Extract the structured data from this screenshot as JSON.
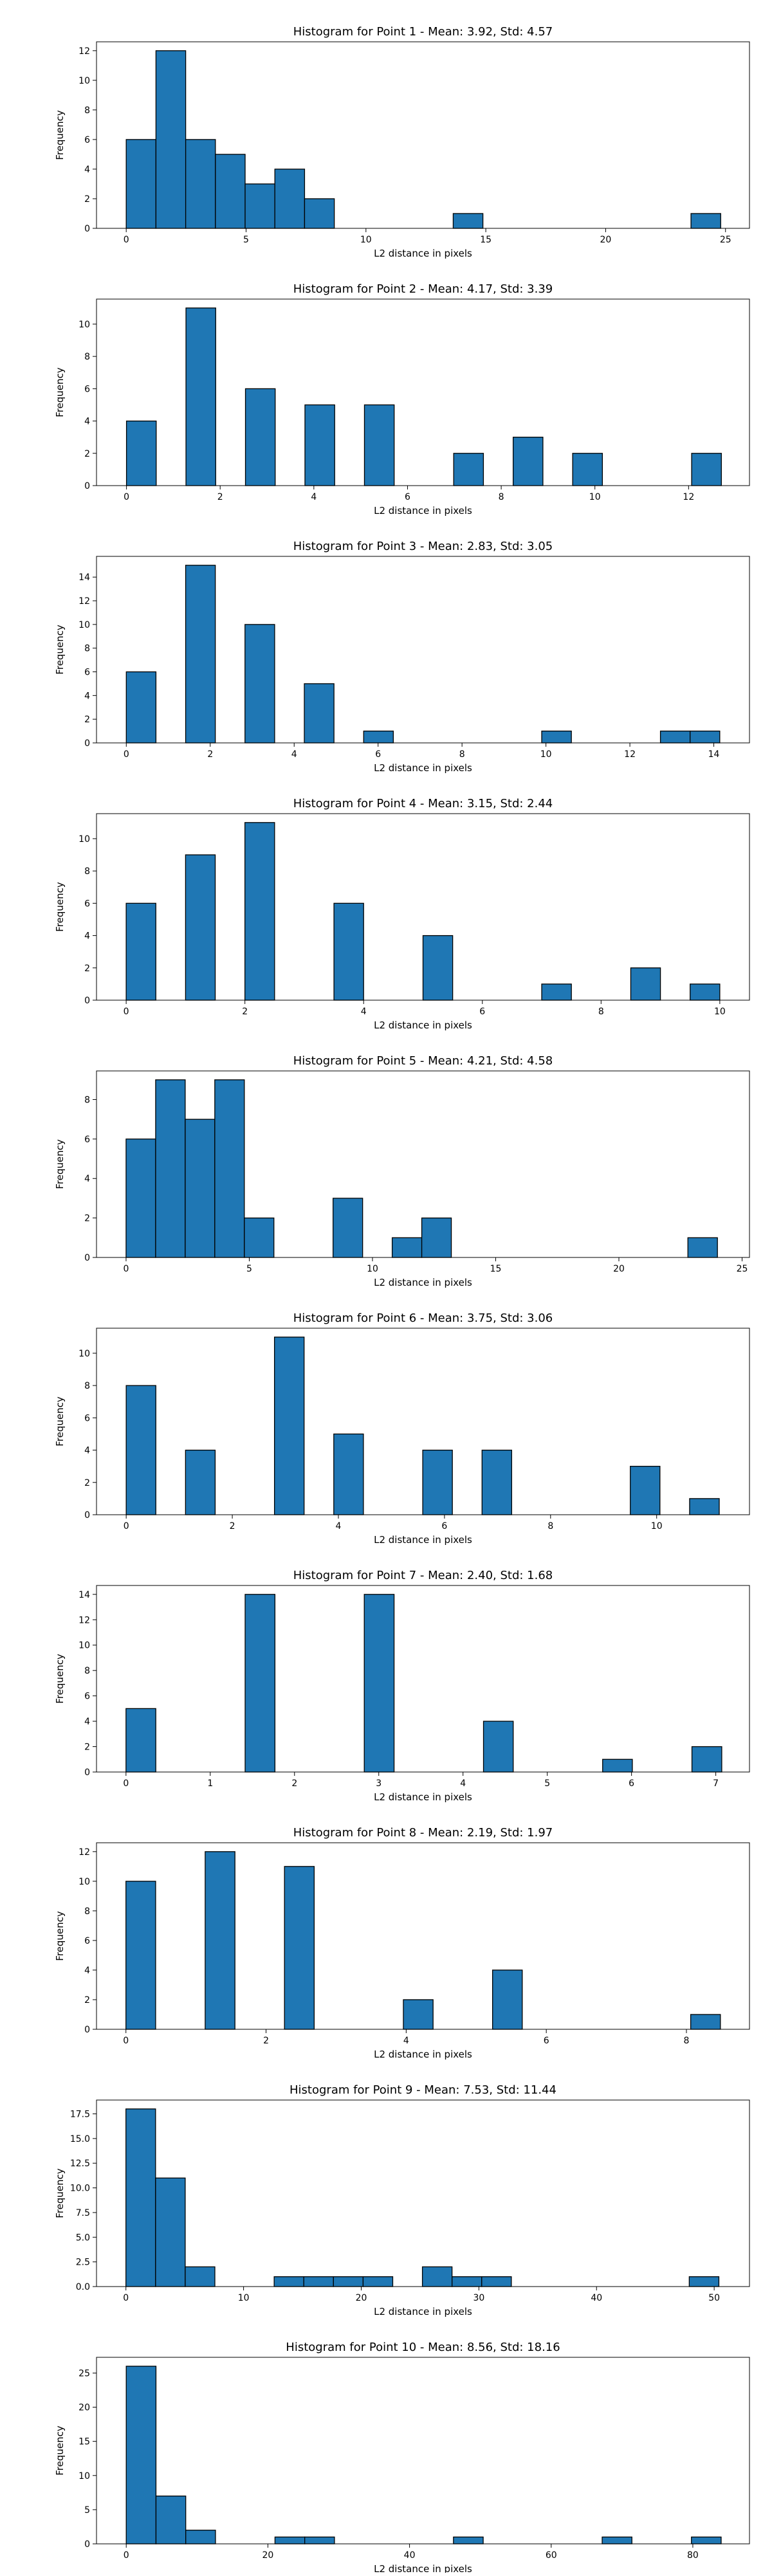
{
  "chart_data": [
    {
      "type": "bar",
      "title": "Histogram for Point 1 - Mean: 3.92, Std: 4.57",
      "xlabel": "L2 distance in pixels",
      "ylabel": "Frequency",
      "xlim": [
        -1.24,
        26.0
      ],
      "ylim": [
        0,
        12.6
      ],
      "xticks": [
        0,
        5,
        10,
        15,
        20,
        25
      ],
      "yticks": [
        0,
        2,
        4,
        6,
        8,
        10,
        12
      ],
      "ytick_labels": [
        "0",
        "2",
        "4",
        "6",
        "8",
        "10",
        "12"
      ],
      "grid": false,
      "bins": [
        {
          "x0": 0.0,
          "x1": 1.24,
          "count": 6
        },
        {
          "x0": 1.24,
          "x1": 2.48,
          "count": 12
        },
        {
          "x0": 2.48,
          "x1": 3.72,
          "count": 6
        },
        {
          "x0": 3.72,
          "x1": 4.96,
          "count": 5
        },
        {
          "x0": 4.96,
          "x1": 6.2,
          "count": 3
        },
        {
          "x0": 6.2,
          "x1": 7.44,
          "count": 4
        },
        {
          "x0": 7.44,
          "x1": 8.68,
          "count": 2
        },
        {
          "x0": 13.64,
          "x1": 14.88,
          "count": 1
        },
        {
          "x0": 23.56,
          "x1": 24.8,
          "count": 1
        }
      ]
    },
    {
      "type": "bar",
      "title": "Histogram for Point 2 - Mean: 4.17, Std: 3.39",
      "xlabel": "L2 distance in pixels",
      "ylabel": "Frequency",
      "xlim": [
        -0.64,
        13.3
      ],
      "ylim": [
        0,
        11.55
      ],
      "xticks": [
        0,
        2,
        4,
        6,
        8,
        10,
        12
      ],
      "yticks": [
        0,
        2,
        4,
        6,
        8,
        10
      ],
      "ytick_labels": [
        "0",
        "2",
        "4",
        "6",
        "8",
        "10"
      ],
      "grid": false,
      "bins": [
        {
          "x0": 0.0,
          "x1": 0.635,
          "count": 4
        },
        {
          "x0": 1.27,
          "x1": 1.905,
          "count": 11
        },
        {
          "x0": 2.54,
          "x1": 3.175,
          "count": 6
        },
        {
          "x0": 3.81,
          "x1": 4.445,
          "count": 5
        },
        {
          "x0": 5.08,
          "x1": 5.715,
          "count": 5
        },
        {
          "x0": 6.985,
          "x1": 7.62,
          "count": 2
        },
        {
          "x0": 8.255,
          "x1": 8.89,
          "count": 3
        },
        {
          "x0": 9.525,
          "x1": 10.16,
          "count": 2
        },
        {
          "x0": 12.065,
          "x1": 12.7,
          "count": 2
        }
      ]
    },
    {
      "type": "bar",
      "title": "Histogram for Point 3 - Mean: 2.83, Std: 3.05",
      "xlabel": "L2 distance in pixels",
      "ylabel": "Frequency",
      "xlim": [
        -0.71,
        14.85
      ],
      "ylim": [
        0,
        15.75
      ],
      "xticks": [
        0,
        2,
        4,
        6,
        8,
        10,
        12,
        14
      ],
      "yticks": [
        0,
        2,
        4,
        6,
        8,
        10,
        12,
        14
      ],
      "ytick_labels": [
        "0",
        "2",
        "4",
        "6",
        "8",
        "10",
        "12",
        "14"
      ],
      "grid": false,
      "bins": [
        {
          "x0": 0.0,
          "x1": 0.707,
          "count": 6
        },
        {
          "x0": 1.414,
          "x1": 2.121,
          "count": 15
        },
        {
          "x0": 2.828,
          "x1": 3.535,
          "count": 10
        },
        {
          "x0": 4.242,
          "x1": 4.949,
          "count": 5
        },
        {
          "x0": 5.656,
          "x1": 6.363,
          "count": 1
        },
        {
          "x0": 9.899,
          "x1": 10.606,
          "count": 1
        },
        {
          "x0": 12.728,
          "x1": 13.435,
          "count": 1
        },
        {
          "x0": 13.435,
          "x1": 14.142,
          "count": 1
        }
      ]
    },
    {
      "type": "bar",
      "title": "Histogram for Point 4 - Mean: 3.15, Std: 2.44",
      "xlabel": "L2 distance in pixels",
      "ylabel": "Frequency",
      "xlim": [
        -0.5,
        10.5
      ],
      "ylim": [
        0,
        11.55
      ],
      "xticks": [
        0,
        2,
        4,
        6,
        8,
        10
      ],
      "yticks": [
        0,
        2,
        4,
        6,
        8,
        10
      ],
      "ytick_labels": [
        "0",
        "2",
        "4",
        "6",
        "8",
        "10"
      ],
      "grid": false,
      "bins": [
        {
          "x0": 0.0,
          "x1": 0.5,
          "count": 6
        },
        {
          "x0": 1.0,
          "x1": 1.5,
          "count": 9
        },
        {
          "x0": 2.0,
          "x1": 2.5,
          "count": 11
        },
        {
          "x0": 3.5,
          "x1": 4.0,
          "count": 6
        },
        {
          "x0": 5.0,
          "x1": 5.5,
          "count": 4
        },
        {
          "x0": 7.0,
          "x1": 7.5,
          "count": 1
        },
        {
          "x0": 8.5,
          "x1": 9.0,
          "count": 2
        },
        {
          "x0": 9.5,
          "x1": 10.0,
          "count": 1
        }
      ]
    },
    {
      "type": "bar",
      "title": "Histogram for Point 5 - Mean: 4.21, Std: 4.58",
      "xlabel": "L2 distance in pixels",
      "ylabel": "Frequency",
      "xlim": [
        -1.2,
        25.3
      ],
      "ylim": [
        0,
        9.45
      ],
      "xticks": [
        0,
        5,
        10,
        15,
        20,
        25
      ],
      "yticks": [
        0,
        2,
        4,
        6,
        8
      ],
      "ytick_labels": [
        "0",
        "2",
        "4",
        "6",
        "8"
      ],
      "grid": false,
      "bins": [
        {
          "x0": 0.0,
          "x1": 1.2,
          "count": 6
        },
        {
          "x0": 1.2,
          "x1": 2.4,
          "count": 9
        },
        {
          "x0": 2.4,
          "x1": 3.6,
          "count": 7
        },
        {
          "x0": 3.6,
          "x1": 4.8,
          "count": 9
        },
        {
          "x0": 4.8,
          "x1": 6.0,
          "count": 2
        },
        {
          "x0": 8.4,
          "x1": 9.6,
          "count": 3
        },
        {
          "x0": 10.8,
          "x1": 12.0,
          "count": 1
        },
        {
          "x0": 12.0,
          "x1": 13.2,
          "count": 2
        },
        {
          "x0": 22.8,
          "x1": 24.0,
          "count": 1
        }
      ]
    },
    {
      "type": "bar",
      "title": "Histogram for Point 6 - Mean: 3.75, Std: 3.06",
      "xlabel": "L2 distance in pixels",
      "ylabel": "Frequency",
      "xlim": [
        -0.56,
        11.75
      ],
      "ylim": [
        0,
        11.55
      ],
      "xticks": [
        0,
        2,
        4,
        6,
        8,
        10
      ],
      "yticks": [
        0,
        2,
        4,
        6,
        8,
        10
      ],
      "ytick_labels": [
        "0",
        "2",
        "4",
        "6",
        "8",
        "10"
      ],
      "grid": false,
      "bins": [
        {
          "x0": 0.0,
          "x1": 0.559,
          "count": 8
        },
        {
          "x0": 1.118,
          "x1": 1.677,
          "count": 4
        },
        {
          "x0": 2.795,
          "x1": 3.354,
          "count": 11
        },
        {
          "x0": 3.913,
          "x1": 4.472,
          "count": 5
        },
        {
          "x0": 5.59,
          "x1": 6.149,
          "count": 4
        },
        {
          "x0": 6.708,
          "x1": 7.267,
          "count": 4
        },
        {
          "x0": 9.503,
          "x1": 10.062,
          "count": 3
        },
        {
          "x0": 10.621,
          "x1": 11.18,
          "count": 1
        }
      ]
    },
    {
      "type": "bar",
      "title": "Histogram for Point 7 - Mean: 2.40, Std: 1.68",
      "xlabel": "L2 distance in pixels",
      "ylabel": "Frequency",
      "xlim": [
        -0.35,
        7.4
      ],
      "ylim": [
        0,
        14.7
      ],
      "xticks": [
        0,
        1,
        2,
        3,
        4,
        5,
        6,
        7
      ],
      "yticks": [
        0,
        2,
        4,
        6,
        8,
        10,
        12,
        14
      ],
      "ytick_labels": [
        "0",
        "2",
        "4",
        "6",
        "8",
        "10",
        "12",
        "14"
      ],
      "grid": false,
      "bins": [
        {
          "x0": 0.0,
          "x1": 0.354,
          "count": 5
        },
        {
          "x0": 1.414,
          "x1": 1.768,
          "count": 14
        },
        {
          "x0": 2.828,
          "x1": 3.182,
          "count": 14
        },
        {
          "x0": 4.243,
          "x1": 4.596,
          "count": 4
        },
        {
          "x0": 5.657,
          "x1": 6.01,
          "count": 1
        },
        {
          "x0": 6.717,
          "x1": 7.071,
          "count": 2
        }
      ]
    },
    {
      "type": "bar",
      "title": "Histogram for Point 8 - Mean: 2.19, Std: 1.97",
      "xlabel": "L2 distance in pixels",
      "ylabel": "Frequency",
      "xlim": [
        -0.42,
        8.9
      ],
      "ylim": [
        0,
        12.6
      ],
      "xticks": [
        0,
        2,
        4,
        6,
        8
      ],
      "yticks": [
        0,
        2,
        4,
        6,
        8,
        10,
        12
      ],
      "ytick_labels": [
        "0",
        "2",
        "4",
        "6",
        "8",
        "10",
        "12"
      ],
      "grid": false,
      "bins": [
        {
          "x0": 0.0,
          "x1": 0.424,
          "count": 10
        },
        {
          "x0": 1.131,
          "x1": 1.556,
          "count": 12
        },
        {
          "x0": 2.263,
          "x1": 2.687,
          "count": 11
        },
        {
          "x0": 3.96,
          "x1": 4.384,
          "count": 2
        },
        {
          "x0": 5.233,
          "x1": 5.657,
          "count": 4
        },
        {
          "x0": 8.061,
          "x1": 8.485,
          "count": 1
        }
      ]
    },
    {
      "type": "bar",
      "title": "Histogram for Point 9 - Mean: 7.53, Std: 11.44",
      "xlabel": "L2 distance in pixels",
      "ylabel": "Frequency",
      "xlim": [
        -2.5,
        53.0
      ],
      "ylim": [
        0,
        18.9
      ],
      "xticks": [
        0,
        10,
        20,
        30,
        40,
        50
      ],
      "yticks": [
        0,
        2.5,
        5.0,
        7.5,
        10.0,
        12.5,
        15.0,
        17.5
      ],
      "ytick_labels": [
        "0.0",
        "2.5",
        "5.0",
        "7.5",
        "10.0",
        "12.5",
        "15.0",
        "17.5"
      ],
      "grid": false,
      "bins": [
        {
          "x0": 0.0,
          "x1": 2.52,
          "count": 18
        },
        {
          "x0": 2.52,
          "x1": 5.04,
          "count": 11
        },
        {
          "x0": 5.04,
          "x1": 7.56,
          "count": 2
        },
        {
          "x0": 12.6,
          "x1": 15.12,
          "count": 1
        },
        {
          "x0": 15.12,
          "x1": 17.64,
          "count": 1
        },
        {
          "x0": 17.64,
          "x1": 20.16,
          "count": 1
        },
        {
          "x0": 20.16,
          "x1": 22.68,
          "count": 1
        },
        {
          "x0": 25.2,
          "x1": 27.72,
          "count": 2
        },
        {
          "x0": 27.72,
          "x1": 30.24,
          "count": 1
        },
        {
          "x0": 30.24,
          "x1": 32.76,
          "count": 1
        },
        {
          "x0": 47.88,
          "x1": 50.4,
          "count": 1
        }
      ]
    },
    {
      "type": "bar",
      "title": "Histogram for Point 10 - Mean: 8.56, Std: 18.16",
      "xlabel": "L2 distance in pixels",
      "ylabel": "Frequency",
      "xlim": [
        -4.2,
        88.0
      ],
      "ylim": [
        0,
        27.3
      ],
      "xticks": [
        0,
        20,
        40,
        60,
        80
      ],
      "yticks": [
        0,
        5,
        10,
        15,
        20,
        25
      ],
      "ytick_labels": [
        "0",
        "5",
        "10",
        "15",
        "20",
        "25"
      ],
      "grid": false,
      "bins": [
        {
          "x0": 0.0,
          "x1": 4.2,
          "count": 26
        },
        {
          "x0": 4.2,
          "x1": 8.4,
          "count": 7
        },
        {
          "x0": 8.4,
          "x1": 12.6,
          "count": 2
        },
        {
          "x0": 21.0,
          "x1": 25.2,
          "count": 1
        },
        {
          "x0": 25.2,
          "x1": 29.4,
          "count": 1
        },
        {
          "x0": 46.2,
          "x1": 50.4,
          "count": 1
        },
        {
          "x0": 67.2,
          "x1": 71.4,
          "count": 1
        },
        {
          "x0": 79.8,
          "x1": 84.0,
          "count": 1
        }
      ]
    }
  ]
}
